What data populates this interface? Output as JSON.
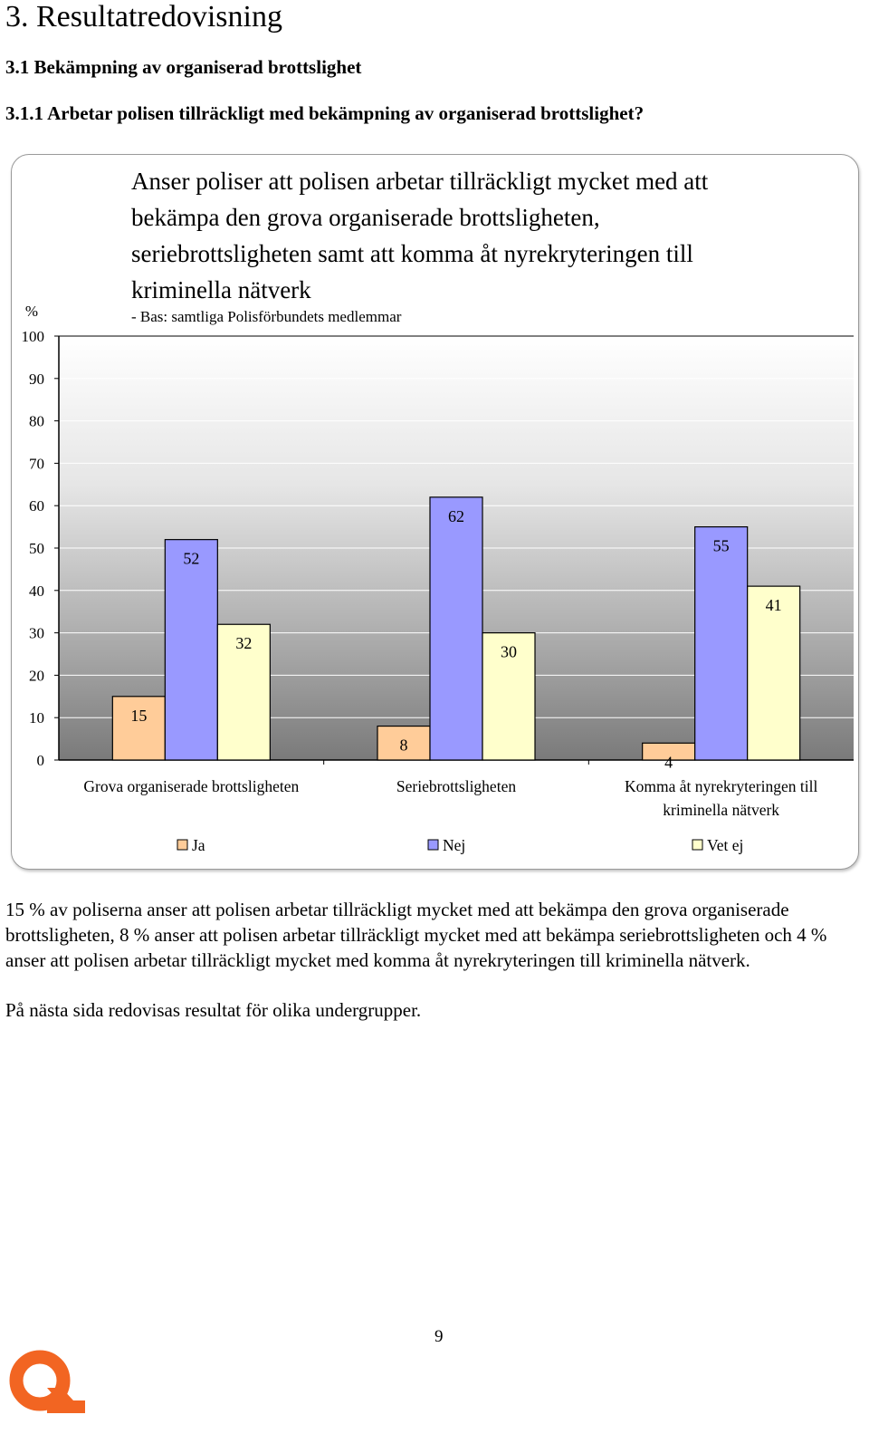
{
  "document": {
    "heading1": "3. Resultatredovisning",
    "heading2": "3.1 Bekämpning av organiserad brottslighet",
    "heading3": "3.1.1 Arbetar polisen tillräckligt med bekämpning av organiserad brottslighet?",
    "paragraphs": [
      "15 % av poliserna anser att polisen arbetar tillräckligt mycket med att bekämpa den grova organiserade brottsligheten, 8 % anser att polisen arbetar tillräckligt mycket med att bekämpa seriebrottsligheten och 4 % anser att polisen arbetar tillräckligt mycket med komma åt nyrekryteringen till kriminella nätverk.",
      "På nästa sida redovisas resultat för olika undergrupper."
    ],
    "page_number": "9"
  },
  "chart_data": {
    "type": "bar",
    "title": "Anser poliser att polisen arbetar tillräckligt mycket med att bekämpa den grova organiserade brottsligheten, seriebrottsligheten samt att komma åt nyrekryteringen till kriminella nätverk",
    "title_lines": [
      "Anser poliser att polisen arbetar tillräckligt mycket med att",
      "bekämpa den grova organiserade brottsligheten,",
      "seriebrottsligheten samt att komma åt nyrekryteringen till",
      "kriminella nätverk"
    ],
    "subtitle": "- Bas: samtliga Polisförbundets medlemmar",
    "ylabel": "%",
    "xlabel": "",
    "ylim": [
      0,
      100
    ],
    "yticks": [
      0,
      10,
      20,
      30,
      40,
      50,
      60,
      70,
      80,
      90,
      100
    ],
    "categories": [
      "Grova organiserade brottsligheten",
      "Seriebrottsligheten",
      "Komma åt nyrekryteringen till kriminella nätverk"
    ],
    "category_lines": [
      [
        "Grova organiserade brottsligheten"
      ],
      [
        "Seriebrottsligheten"
      ],
      [
        "Komma åt nyrekryteringen till",
        "kriminella nätverk"
      ]
    ],
    "series": [
      {
        "name": "Ja",
        "color": "#FFCC99",
        "values": [
          15,
          8,
          4
        ]
      },
      {
        "name": "Nej",
        "color": "#9999FF",
        "values": [
          52,
          62,
          55
        ]
      },
      {
        "name": "Vet ej",
        "color": "#FFFFCC",
        "values": [
          32,
          30,
          41
        ]
      }
    ],
    "grid": true,
    "legend": "bottom",
    "data_labels": true
  }
}
